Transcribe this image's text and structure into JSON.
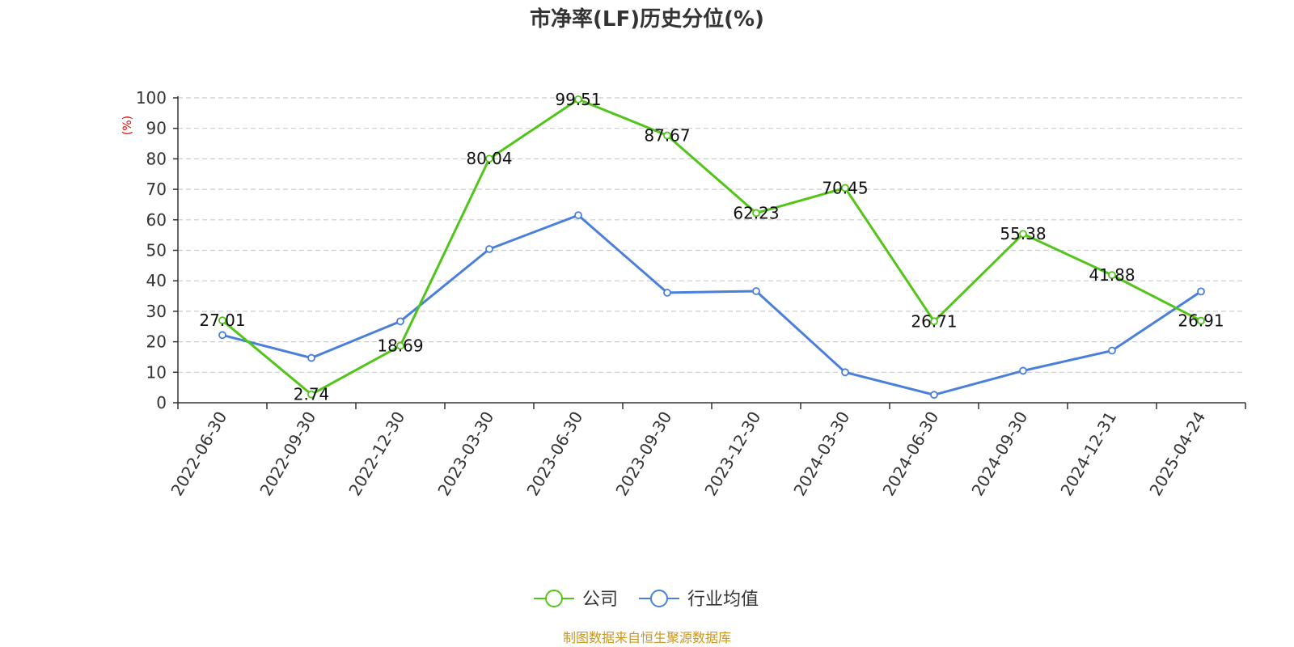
{
  "title": "市净率(LF)历史分位(%)",
  "y_unit": "(%)",
  "source": "制图数据来自恒生聚源数据库",
  "colors": {
    "company": "#52c41a",
    "industry": "#4a7fdc",
    "unit": "#e00000",
    "source": "#c8961e",
    "grid": "#cccccc",
    "axis": "#333333"
  },
  "chart_data": {
    "type": "line",
    "categories": [
      "2022-06-30",
      "2022-09-30",
      "2022-12-30",
      "2023-03-30",
      "2023-06-30",
      "2023-09-30",
      "2023-12-30",
      "2024-03-30",
      "2024-06-30",
      "2024-09-30",
      "2024-12-31",
      "2025-04-24"
    ],
    "ylim": [
      0,
      100
    ],
    "yticks": [
      0,
      10,
      20,
      30,
      40,
      50,
      60,
      70,
      80,
      90,
      100
    ],
    "grid": true,
    "legend_position": "bottom-center",
    "series": [
      {
        "name": "公司",
        "color": "#52c41a",
        "values": [
          27.01,
          2.74,
          18.69,
          80.04,
          99.51,
          87.67,
          62.23,
          70.45,
          26.71,
          55.38,
          41.88,
          26.91
        ],
        "labels": [
          "27.01",
          "2.74",
          "18.69",
          "80.04",
          "99.51",
          "87.67",
          "62.23",
          "70.45",
          "26.71",
          "55.38",
          "41.88",
          "26.91"
        ]
      },
      {
        "name": "行业均值",
        "color": "#4a7fdc",
        "values": [
          22.2,
          14.7,
          26.7,
          50.4,
          61.5,
          36.1,
          36.6,
          10.0,
          2.6,
          10.5,
          17.1,
          36.5
        ]
      }
    ]
  }
}
